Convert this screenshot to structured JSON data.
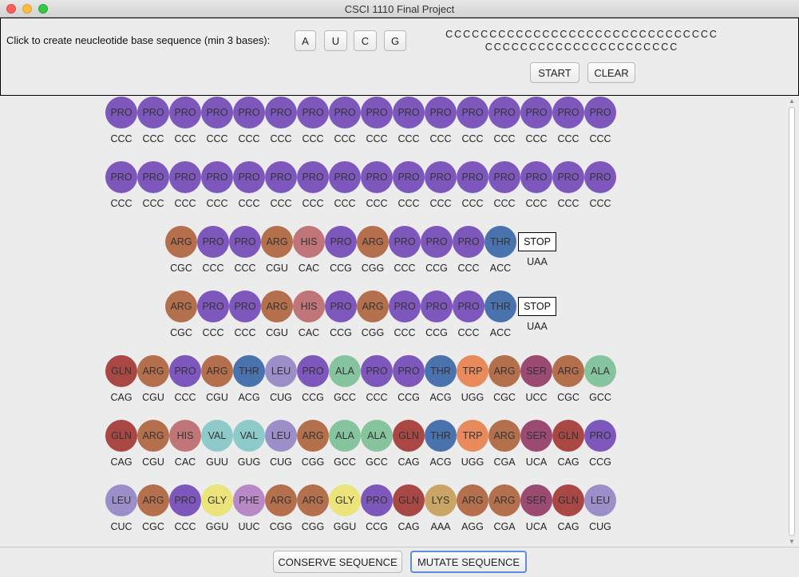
{
  "window": {
    "title": "CSCI 1110 Final Project"
  },
  "controls": {
    "prompt": "Click to create neucleotide base sequence (min 3 bases):",
    "base_buttons": [
      "A",
      "U",
      "C",
      "G"
    ],
    "sequence_line1": "CCCCCCCCCCCCCCCCCCCCCCCCCCCCCCC",
    "sequence_line2": "CCCCCCCCCCCCCCCCCCCCCC",
    "start_label": "START",
    "clear_label": "CLEAR"
  },
  "rows": [
    {
      "cells": [
        [
          "PRO",
          "CCC"
        ],
        [
          "PRO",
          "CCC"
        ],
        [
          "PRO",
          "CCC"
        ],
        [
          "PRO",
          "CCC"
        ],
        [
          "PRO",
          "CCC"
        ],
        [
          "PRO",
          "CCC"
        ],
        [
          "PRO",
          "CCC"
        ],
        [
          "PRO",
          "CCC"
        ],
        [
          "PRO",
          "CCC"
        ],
        [
          "PRO",
          "CCC"
        ],
        [
          "PRO",
          "CCC"
        ],
        [
          "PRO",
          "CCC"
        ],
        [
          "PRO",
          "CCC"
        ],
        [
          "PRO",
          "CCC"
        ],
        [
          "PRO",
          "CCC"
        ],
        [
          "PRO",
          "CCC"
        ]
      ]
    },
    {
      "cells": [
        [
          "PRO",
          "CCC"
        ],
        [
          "PRO",
          "CCC"
        ],
        [
          "PRO",
          "CCC"
        ],
        [
          "PRO",
          "CCC"
        ],
        [
          "PRO",
          "CCC"
        ],
        [
          "PRO",
          "CCC"
        ],
        [
          "PRO",
          "CCC"
        ],
        [
          "PRO",
          "CCC"
        ],
        [
          "PRO",
          "CCC"
        ],
        [
          "PRO",
          "CCC"
        ],
        [
          "PRO",
          "CCC"
        ],
        [
          "PRO",
          "CCC"
        ],
        [
          "PRO",
          "CCC"
        ],
        [
          "PRO",
          "CCC"
        ],
        [
          "PRO",
          "CCC"
        ],
        [
          "PRO",
          "CCC"
        ]
      ]
    },
    {
      "cells": [
        [
          "ARG",
          "CGC"
        ],
        [
          "PRO",
          "CCC"
        ],
        [
          "PRO",
          "CCC"
        ],
        [
          "ARG",
          "CGU"
        ],
        [
          "HIS",
          "CAC"
        ],
        [
          "PRO",
          "CCG"
        ],
        [
          "ARG",
          "CGG"
        ],
        [
          "PRO",
          "CCC"
        ],
        [
          "PRO",
          "CCG"
        ],
        [
          "PRO",
          "CCC"
        ],
        [
          "THR",
          "ACC"
        ],
        [
          "STOP",
          "UAA"
        ]
      ]
    },
    {
      "cells": [
        [
          "ARG",
          "CGC"
        ],
        [
          "PRO",
          "CCC"
        ],
        [
          "PRO",
          "CCC"
        ],
        [
          "ARG",
          "CGU"
        ],
        [
          "HIS",
          "CAC"
        ],
        [
          "PRO",
          "CCG"
        ],
        [
          "ARG",
          "CGG"
        ],
        [
          "PRO",
          "CCC"
        ],
        [
          "PRO",
          "CCG"
        ],
        [
          "PRO",
          "CCC"
        ],
        [
          "THR",
          "ACC"
        ],
        [
          "STOP",
          "UAA"
        ]
      ]
    },
    {
      "cells": [
        [
          "GLN",
          "CAG"
        ],
        [
          "ARG",
          "CGU"
        ],
        [
          "PRO",
          "CCC"
        ],
        [
          "ARG",
          "CGU"
        ],
        [
          "THR",
          "ACG"
        ],
        [
          "LEU",
          "CUG"
        ],
        [
          "PRO",
          "CCG"
        ],
        [
          "ALA",
          "GCC"
        ],
        [
          "PRO",
          "CCC"
        ],
        [
          "PRO",
          "CCG"
        ],
        [
          "THR",
          "ACG"
        ],
        [
          "TRP",
          "UGG"
        ],
        [
          "ARG",
          "CGC"
        ],
        [
          "SER",
          "UCC"
        ],
        [
          "ARG",
          "CGC"
        ],
        [
          "ALA",
          "GCC"
        ]
      ]
    },
    {
      "cells": [
        [
          "GLN",
          "CAG"
        ],
        [
          "ARG",
          "CGU"
        ],
        [
          "HIS",
          "CAC"
        ],
        [
          "VAL",
          "GUU"
        ],
        [
          "VAL",
          "GUG"
        ],
        [
          "LEU",
          "CUG"
        ],
        [
          "ARG",
          "CGG"
        ],
        [
          "ALA",
          "GCC"
        ],
        [
          "ALA",
          "GCC"
        ],
        [
          "GLN",
          "CAG"
        ],
        [
          "THR",
          "ACG"
        ],
        [
          "TRP",
          "UGG"
        ],
        [
          "ARG",
          "CGA"
        ],
        [
          "SER",
          "UCA"
        ],
        [
          "GLN",
          "CAG"
        ],
        [
          "PRO",
          "CCG"
        ]
      ]
    },
    {
      "cells": [
        [
          "LEU",
          "CUC"
        ],
        [
          "ARG",
          "CGC"
        ],
        [
          "PRO",
          "CCC"
        ],
        [
          "GLY",
          "GGU"
        ],
        [
          "PHE",
          "UUC"
        ],
        [
          "ARG",
          "CGG"
        ],
        [
          "ARG",
          "CGG"
        ],
        [
          "GLY",
          "GGU"
        ],
        [
          "PRO",
          "CCG"
        ],
        [
          "GLN",
          "CAG"
        ],
        [
          "LYS",
          "AAA"
        ],
        [
          "ARG",
          "AGG"
        ],
        [
          "ARG",
          "CGA"
        ],
        [
          "SER",
          "UCA"
        ],
        [
          "GLN",
          "CAG"
        ],
        [
          "LEU",
          "CUG"
        ]
      ]
    }
  ],
  "colors": {
    "PRO": "#7e57bd",
    "ARG": "#b4704c",
    "HIS": "#c07579",
    "THR": "#4a72ad",
    "GLN": "#a94745",
    "LEU": "#9a8fc8",
    "ALA": "#86c49e",
    "TRP": "#e88a5c",
    "SER": "#9b4a72",
    "VAL": "#8ecaca",
    "GLY": "#ece47a",
    "PHE": "#b988c6",
    "LYS": "#c9a665"
  },
  "footer": {
    "conserve_label": "CONSERVE SEQUENCE",
    "mutate_label": "MUTATE SEQUENCE"
  }
}
